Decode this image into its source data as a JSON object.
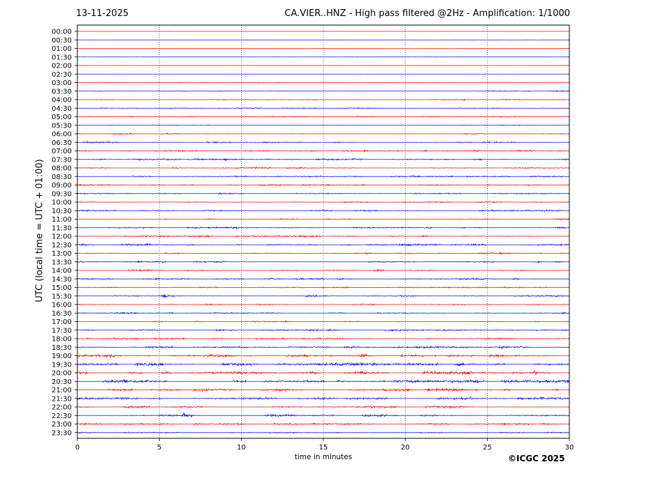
{
  "header": {
    "date": "13-11-2025",
    "title": "CA.VIER..HNZ - High pass filtered @2Hz - Amplification: 1/1000"
  },
  "footer": {
    "copyright": "©ICGC 2025"
  },
  "chart_data": {
    "type": "line",
    "ylabel": "UTC (local time = UTC + 01:00)",
    "xlabel": "time in minutes",
    "xlim": [
      0,
      30
    ],
    "xticks": [
      0,
      5,
      10,
      15,
      20,
      25,
      30
    ],
    "grid_vertical": [
      5,
      10,
      15,
      20,
      25
    ],
    "row_labels": [
      "00:00",
      "00:30",
      "01:00",
      "01:30",
      "02:00",
      "02:30",
      "03:00",
      "03:30",
      "04:00",
      "04:30",
      "05:00",
      "05:30",
      "06:00",
      "06:30",
      "07:00",
      "07:30",
      "08:00",
      "08:30",
      "09:00",
      "09:30",
      "10:00",
      "10:30",
      "11:00",
      "11:30",
      "12:00",
      "12:30",
      "13:00",
      "13:30",
      "14:00",
      "14:30",
      "15:00",
      "15:30",
      "16:00",
      "16:30",
      "17:00",
      "17:30",
      "18:00",
      "18:30",
      "19:00",
      "19:30",
      "20:00",
      "20:30",
      "21:00",
      "21:30",
      "22:00",
      "22:30",
      "23:00",
      "23:30"
    ],
    "colors": [
      "#ff0000",
      "#0000ff"
    ],
    "noise_level": [
      0.05,
      0.1,
      0.05,
      0.1,
      0.05,
      0.1,
      0.3,
      0.4,
      0.4,
      0.5,
      0.4,
      0.3,
      0.5,
      0.6,
      0.7,
      0.7,
      0.7,
      0.6,
      0.6,
      0.5,
      0.5,
      0.6,
      0.6,
      0.7,
      0.7,
      0.8,
      0.7,
      0.7,
      0.7,
      0.7,
      0.6,
      0.6,
      0.5,
      0.6,
      0.6,
      0.7,
      0.6,
      0.8,
      1.0,
      1.2,
      1.3,
      1.3,
      1.1,
      1.0,
      0.9,
      0.9,
      0.8,
      0.5
    ],
    "events": [
      {
        "row": 6,
        "minute": 11.1,
        "amp": 0.5
      },
      {
        "row": 7,
        "minute": 27.2,
        "amp": 0.6
      },
      {
        "row": 8,
        "minute": 23.5,
        "amp": 0.6
      },
      {
        "row": 9,
        "minute": 5.7,
        "amp": 0.5
      },
      {
        "row": 10,
        "minute": 21.5,
        "amp": 0.5
      },
      {
        "row": 12,
        "minute": 3.0,
        "amp": 0.7
      },
      {
        "row": 13,
        "minute": 24.8,
        "amp": 1.2
      },
      {
        "row": 14,
        "minute": 14.2,
        "amp": 0.9
      },
      {
        "row": 15,
        "minute": 9.0,
        "amp": 1.1
      },
      {
        "row": 15,
        "minute": 8.0,
        "amp": 0.8
      },
      {
        "row": 16,
        "minute": 5.8,
        "amp": 0.9
      },
      {
        "row": 18,
        "minute": 5.0,
        "amp": 0.6
      },
      {
        "row": 19,
        "minute": 8.6,
        "amp": 0.8
      },
      {
        "row": 25,
        "minute": 0.3,
        "amp": 1.0
      },
      {
        "row": 24,
        "minute": 30.0,
        "amp": 1.3
      },
      {
        "row": 26,
        "minute": 17.6,
        "amp": 0.9
      },
      {
        "row": 27,
        "minute": 28.0,
        "amp": 0.7
      },
      {
        "row": 28,
        "minute": 27.0,
        "amp": 0.8
      },
      {
        "row": 29,
        "minute": 11.8,
        "amp": 1.2
      },
      {
        "row": 31,
        "minute": 5.3,
        "amp": 2.0
      },
      {
        "row": 31,
        "minute": 26.8,
        "amp": 0.8
      },
      {
        "row": 33,
        "minute": 29.6,
        "amp": 0.8
      },
      {
        "row": 34,
        "minute": 12.6,
        "amp": 0.8
      },
      {
        "row": 35,
        "minute": 15.3,
        "amp": 1.0
      },
      {
        "row": 37,
        "minute": 27.0,
        "amp": 1.0
      },
      {
        "row": 38,
        "minute": 2.0,
        "amp": 1.8
      },
      {
        "row": 38,
        "minute": 17.3,
        "amp": 2.2
      },
      {
        "row": 38,
        "minute": 24.0,
        "amp": 1.0
      },
      {
        "row": 39,
        "minute": 9.3,
        "amp": 1.2
      },
      {
        "row": 39,
        "minute": 23.3,
        "amp": 1.8
      },
      {
        "row": 40,
        "minute": 5.3,
        "amp": 1.6
      },
      {
        "row": 40,
        "minute": 10.8,
        "amp": 1.5
      },
      {
        "row": 40,
        "minute": 17.3,
        "amp": 2.0
      },
      {
        "row": 40,
        "minute": 27.8,
        "amp": 2.0
      },
      {
        "row": 41,
        "minute": 2.8,
        "amp": 1.7
      },
      {
        "row": 41,
        "minute": 24.3,
        "amp": 1.8
      },
      {
        "row": 42,
        "minute": 7.8,
        "amp": 1.4
      },
      {
        "row": 42,
        "minute": 21.3,
        "amp": 1.6
      },
      {
        "row": 43,
        "minute": 14.5,
        "amp": 1.0
      },
      {
        "row": 43,
        "minute": 28.2,
        "amp": 1.8
      },
      {
        "row": 44,
        "minute": 23.3,
        "amp": 0.9
      },
      {
        "row": 45,
        "minute": 6.5,
        "amp": 2.5
      },
      {
        "row": 45,
        "minute": 12.6,
        "amp": 0.9
      },
      {
        "row": 46,
        "minute": 0.4,
        "amp": 0.7
      },
      {
        "row": 46,
        "minute": 26.3,
        "amp": 0.8
      },
      {
        "row": 46,
        "minute": 17.8,
        "amp": 0.7
      }
    ]
  }
}
